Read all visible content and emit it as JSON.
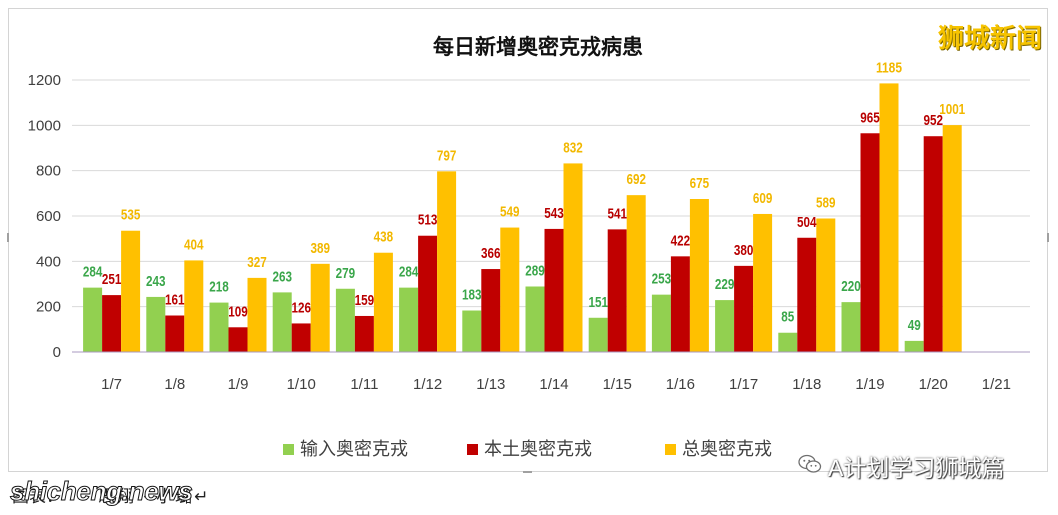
{
  "watermark_top": "狮城新闻",
  "caption": {
    "label": "图表：",
    "credit": "思翔 · 小璐↵"
  },
  "site_watermark": "shicheng.news",
  "wechat_account": {
    "icon": "wechat-icon",
    "name": "A计划学习狮城篇"
  },
  "colors": {
    "grid": "#d9d9d9",
    "axis": "#a898c0",
    "watermark": "#f6c300"
  },
  "chart_data": {
    "type": "bar",
    "title": "每日新增奥密克戎病患",
    "xlabel": "",
    "ylabel": "",
    "categories": [
      "1/7",
      "1/8",
      "1/9",
      "1/10",
      "1/11",
      "1/12",
      "1/13",
      "1/14",
      "1/15",
      "1/16",
      "1/17",
      "1/18",
      "1/19",
      "1/20",
      "1/21"
    ],
    "series": [
      {
        "name": "输入奥密克戎",
        "color": "#92d050",
        "label_color": "#3aa64a",
        "values": [
          284,
          243,
          218,
          263,
          279,
          284,
          183,
          289,
          151,
          253,
          229,
          85,
          220,
          49,
          null
        ]
      },
      {
        "name": "本土奥密克戎",
        "color": "#c00000",
        "label_color": "#b80000",
        "values": [
          251,
          161,
          109,
          126,
          159,
          513,
          366,
          543,
          541,
          422,
          380,
          504,
          965,
          952,
          null
        ]
      },
      {
        "name": "总奥密克戎",
        "color": "#ffc000",
        "label_color": "#f2b800",
        "values": [
          535,
          404,
          327,
          389,
          438,
          797,
          549,
          832,
          692,
          675,
          609,
          589,
          1185,
          1001,
          null
        ]
      }
    ],
    "ylim": [
      0,
      1200
    ],
    "yticks": [
      0,
      200,
      400,
      600,
      800,
      1000,
      1200
    ],
    "grid": true,
    "legend": "bottom",
    "data_labels": true
  }
}
